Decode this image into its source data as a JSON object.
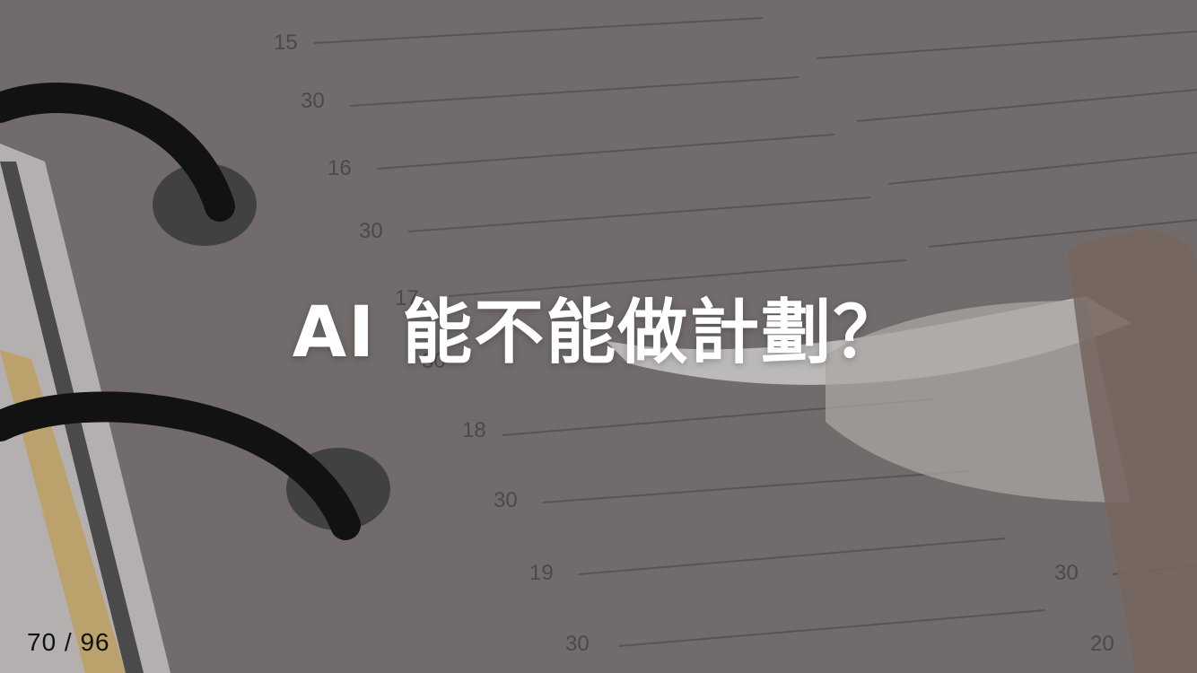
{
  "slide": {
    "title": "AI 能不能做計劃？",
    "page_counter": "70 / 96"
  },
  "background": {
    "planner_numbers": [
      "15",
      "30",
      "16",
      "30",
      "17",
      "30",
      "18",
      "30",
      "19",
      "30",
      "30",
      "20"
    ]
  }
}
